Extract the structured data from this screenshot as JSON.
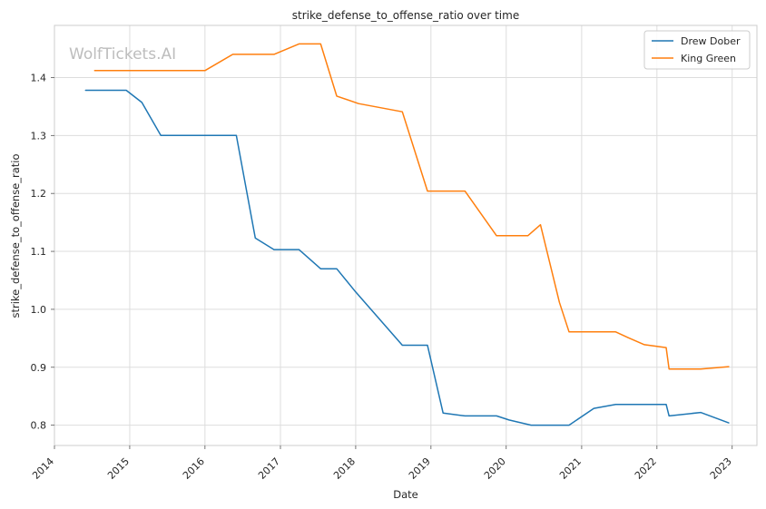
{
  "chart_data": {
    "type": "line",
    "title": "strike_defense_to_offense_ratio over time",
    "xlabel": "Date",
    "ylabel": "strike_defense_to_offense_ratio",
    "watermark": "WolfTickets.AI",
    "xlim": [
      "2014-01-01",
      "2023-05-01"
    ],
    "ylim": [
      0.765,
      1.49
    ],
    "x_ticks": [
      "2014",
      "2015",
      "2016",
      "2017",
      "2018",
      "2019",
      "2020",
      "2021",
      "2022",
      "2023"
    ],
    "y_ticks": [
      "0.8",
      "0.9",
      "1.0",
      "1.1",
      "1.2",
      "1.3",
      "1.4"
    ],
    "grid": true,
    "legend_position": "top-right",
    "series": [
      {
        "name": "Drew Dober",
        "color": "#1f77b4",
        "points": [
          {
            "x": "2014-06-01",
            "y": 1.378
          },
          {
            "x": "2014-12-15",
            "y": 1.378
          },
          {
            "x": "2015-03-01",
            "y": 1.357
          },
          {
            "x": "2015-06-01",
            "y": 1.3
          },
          {
            "x": "2016-06-01",
            "y": 1.3
          },
          {
            "x": "2016-09-01",
            "y": 1.123
          },
          {
            "x": "2016-12-01",
            "y": 1.103
          },
          {
            "x": "2017-04-01",
            "y": 1.103
          },
          {
            "x": "2017-07-15",
            "y": 1.07
          },
          {
            "x": "2017-10-01",
            "y": 1.07
          },
          {
            "x": "2018-01-01",
            "y": 1.03
          },
          {
            "x": "2018-08-15",
            "y": 0.938
          },
          {
            "x": "2018-12-15",
            "y": 0.938
          },
          {
            "x": "2019-03-01",
            "y": 0.821
          },
          {
            "x": "2019-06-15",
            "y": 0.816
          },
          {
            "x": "2019-11-15",
            "y": 0.816
          },
          {
            "x": "2020-01-15",
            "y": 0.809
          },
          {
            "x": "2020-05-01",
            "y": 0.8
          },
          {
            "x": "2020-11-01",
            "y": 0.8
          },
          {
            "x": "2021-03-01",
            "y": 0.829
          },
          {
            "x": "2021-06-15",
            "y": 0.836
          },
          {
            "x": "2022-02-15",
            "y": 0.836
          },
          {
            "x": "2022-03-01",
            "y": 0.816
          },
          {
            "x": "2022-08-01",
            "y": 0.822
          },
          {
            "x": "2022-12-15",
            "y": 0.804
          }
        ]
      },
      {
        "name": "King Green",
        "color": "#ff7f0e",
        "points": [
          {
            "x": "2014-07-15",
            "y": 1.412
          },
          {
            "x": "2016-01-01",
            "y": 1.412
          },
          {
            "x": "2016-05-15",
            "y": 1.44
          },
          {
            "x": "2016-12-01",
            "y": 1.44
          },
          {
            "x": "2017-04-01",
            "y": 1.458
          },
          {
            "x": "2017-07-15",
            "y": 1.458
          },
          {
            "x": "2017-10-01",
            "y": 1.368
          },
          {
            "x": "2018-01-15",
            "y": 1.355
          },
          {
            "x": "2018-08-15",
            "y": 1.341
          },
          {
            "x": "2018-12-15",
            "y": 1.204
          },
          {
            "x": "2019-06-15",
            "y": 1.204
          },
          {
            "x": "2019-11-15",
            "y": 1.127
          },
          {
            "x": "2020-04-15",
            "y": 1.127
          },
          {
            "x": "2020-06-15",
            "y": 1.146
          },
          {
            "x": "2020-09-15",
            "y": 1.012
          },
          {
            "x": "2020-11-01",
            "y": 0.961
          },
          {
            "x": "2021-06-15",
            "y": 0.961
          },
          {
            "x": "2021-08-15",
            "y": 0.951
          },
          {
            "x": "2021-11-01",
            "y": 0.939
          },
          {
            "x": "2022-02-15",
            "y": 0.934
          },
          {
            "x": "2022-03-01",
            "y": 0.897
          },
          {
            "x": "2022-08-01",
            "y": 0.897
          },
          {
            "x": "2022-12-15",
            "y": 0.901
          }
        ]
      }
    ]
  }
}
